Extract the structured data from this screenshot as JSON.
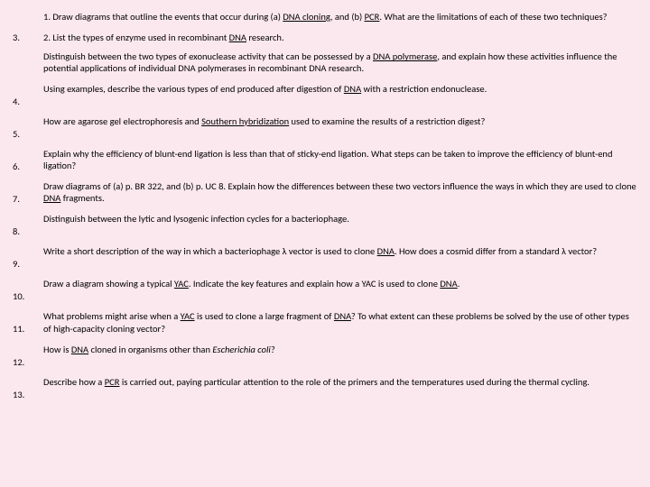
{
  "q1_a": "1. Draw diagrams that outline the events that occur during (a) ",
  "q1_link1": "DNA cloning",
  "q1_b": ", and (b) ",
  "q1_link2": "PCR",
  "q1_c": ". What are the limitations of each of these two techniques?",
  "items": [
    {
      "num": "3.",
      "line1_a": "2. List the types of enzyme used in recombinant ",
      "line1_link": "DNA",
      "line1_b": " research.",
      "body_a": "Distinguish between the two types of exonuclease activity that can be possessed by a ",
      "body_link": "DNA polymerase",
      "body_b": ", and explain how these activities influence the potential applications of individual DNA polymerases in recombinant DNA research."
    },
    {
      "num": "4.",
      "body_a": "Using examples, describe the various types of end produced after digestion of ",
      "body_link": "DNA",
      "body_b": " with a restriction endonuclease."
    },
    {
      "num": "5.",
      "body_a": "How are agarose gel electrophoresis and ",
      "body_link": "Southern hybridization",
      "body_b": " used to examine the results of a restriction digest?"
    },
    {
      "num": "6.",
      "body_a": "Explain why the efficiency of blunt-end ligation is less than that of sticky-end ligation. What steps can be taken to improve the efficiency of blunt-end ligation?",
      "body_link": "",
      "body_b": ""
    },
    {
      "num": "7.",
      "body_a": "Draw diagrams of (a) p. BR 322, and (b) p. UC 8. Explain how the differences between these two vectors influence the ways in which they are used to clone ",
      "body_link": "DNA",
      "body_b": " fragments."
    },
    {
      "num": "8.",
      "body_a": "Distinguish between the lytic and lysogenic infection cycles for a bacteriophage.",
      "body_link": "",
      "body_b": ""
    },
    {
      "num": "9.",
      "body_a": "Write a short description of the way in which a bacteriophage λ vector is used to clone ",
      "body_link": "DNA",
      "body_b": ". How does a cosmid differ from a standard λ vector?"
    },
    {
      "num": "10.",
      "body_a": "Draw a diagram showing a typical ",
      "body_link": "YAC",
      "body_b": ". Indicate the key features and explain how a YAC is used to clone ",
      "body_link2": "DNA",
      "body_c": "."
    },
    {
      "num": "11.",
      "body_a": "What problems might arise when a ",
      "body_link": "YAC",
      "body_b": " is used to clone a large fragment of ",
      "body_link2": "DNA",
      "body_c": "? To what extent can these problems be solved by the use of other types of high-capacity cloning vector?"
    },
    {
      "num": "12.",
      "body_a": "How is ",
      "body_link": "DNA",
      "body_b": " cloned in organisms other than ",
      "body_italic": "Escherichia coli",
      "body_c": "?"
    },
    {
      "num": "13.",
      "body_a": "Describe how a ",
      "body_link": "PCR",
      "body_b": " is carried out, paying particular attention to the role of the primers and the temperatures used during the thermal cycling."
    }
  ]
}
